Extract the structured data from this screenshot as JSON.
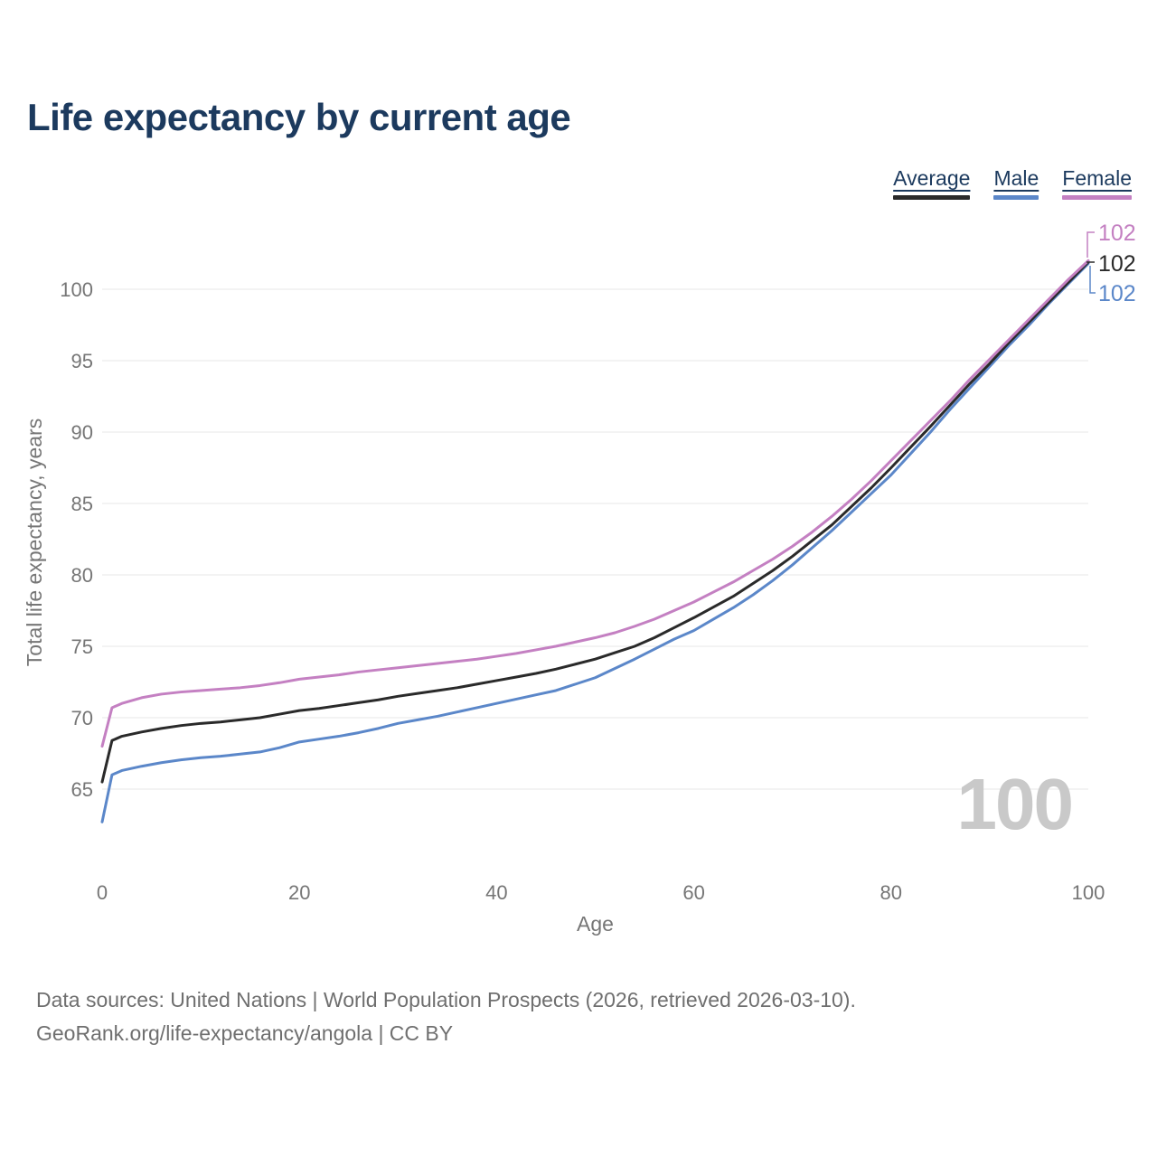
{
  "title": "Life expectancy by current age",
  "legend": [
    {
      "label": "Average",
      "color": "#2a2a2a"
    },
    {
      "label": "Male",
      "color": "#5b87c9"
    },
    {
      "label": "Female",
      "color": "#c480c2"
    }
  ],
  "watermark": "100",
  "footer": {
    "line1": "Data sources: United Nations | World Population Prospects (2026, retrieved 2026-03-10).",
    "line2": "GeoRank.org/life-expectancy/angola | CC BY"
  },
  "chart_data": {
    "type": "line",
    "title": "Life expectancy by current age",
    "xlabel": "Age",
    "ylabel": "Total life expectancy, years",
    "x_ticks": [
      0,
      20,
      40,
      60,
      80,
      100
    ],
    "y_ticks": [
      65,
      70,
      75,
      80,
      85,
      90,
      95,
      100
    ],
    "xlim": [
      0,
      100
    ],
    "ylim": [
      62,
      103
    ],
    "grid": "horizontal",
    "legend_position": "top-right",
    "x": [
      0,
      1,
      2,
      4,
      6,
      8,
      10,
      12,
      14,
      16,
      18,
      20,
      22,
      24,
      26,
      28,
      30,
      32,
      34,
      36,
      38,
      40,
      42,
      44,
      46,
      48,
      50,
      52,
      54,
      56,
      58,
      60,
      62,
      64,
      66,
      68,
      70,
      72,
      74,
      76,
      78,
      80,
      82,
      84,
      86,
      88,
      90,
      92,
      94,
      96,
      98,
      100
    ],
    "series": [
      {
        "name": "Average",
        "color": "#2a2a2a",
        "end_label": "102",
        "values": [
          65.5,
          68.4,
          68.7,
          69.0,
          69.25,
          69.45,
          69.6,
          69.7,
          69.85,
          70.0,
          70.25,
          70.5,
          70.65,
          70.85,
          71.05,
          71.25,
          71.5,
          71.7,
          71.9,
          72.1,
          72.35,
          72.6,
          72.85,
          73.1,
          73.4,
          73.75,
          74.1,
          74.55,
          75.0,
          75.6,
          76.3,
          77.0,
          77.75,
          78.5,
          79.4,
          80.3,
          81.3,
          82.4,
          83.5,
          84.8,
          86.1,
          87.5,
          88.95,
          90.4,
          91.9,
          93.4,
          94.8,
          96.3,
          97.7,
          99.1,
          100.5,
          101.9
        ]
      },
      {
        "name": "Male",
        "color": "#5b87c9",
        "end_label": "102",
        "values": [
          62.7,
          66.0,
          66.3,
          66.6,
          66.85,
          67.05,
          67.2,
          67.3,
          67.45,
          67.6,
          67.9,
          68.3,
          68.5,
          68.7,
          68.95,
          69.25,
          69.6,
          69.85,
          70.1,
          70.4,
          70.7,
          71.0,
          71.3,
          71.6,
          71.9,
          72.35,
          72.8,
          73.45,
          74.1,
          74.8,
          75.5,
          76.1,
          76.9,
          77.7,
          78.6,
          79.6,
          80.7,
          81.9,
          83.1,
          84.4,
          85.7,
          87.0,
          88.5,
          90.0,
          91.6,
          93.1,
          94.6,
          96.1,
          97.5,
          99.0,
          100.4,
          101.8
        ]
      },
      {
        "name": "Female",
        "color": "#c480c2",
        "end_label": "102",
        "values": [
          68.0,
          70.7,
          71.0,
          71.4,
          71.65,
          71.8,
          71.9,
          72.0,
          72.1,
          72.25,
          72.45,
          72.7,
          72.85,
          73.0,
          73.2,
          73.35,
          73.5,
          73.65,
          73.8,
          73.95,
          74.1,
          74.3,
          74.5,
          74.75,
          75.0,
          75.3,
          75.6,
          75.95,
          76.4,
          76.9,
          77.5,
          78.1,
          78.8,
          79.5,
          80.3,
          81.1,
          82.0,
          83.0,
          84.1,
          85.3,
          86.6,
          88.0,
          89.4,
          90.8,
          92.2,
          93.7,
          95.1,
          96.5,
          97.9,
          99.3,
          100.7,
          102.0
        ]
      }
    ]
  }
}
